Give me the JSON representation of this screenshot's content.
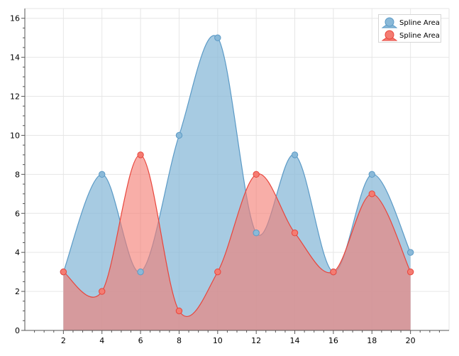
{
  "chart_data": {
    "type": "area",
    "smooth": true,
    "x": [
      2,
      4,
      6,
      8,
      10,
      12,
      14,
      16,
      18,
      20
    ],
    "series": [
      {
        "name": "Spline Area",
        "values": [
          3,
          8,
          3,
          10,
          15,
          5,
          9,
          3,
          8,
          4
        ],
        "color": "#5b9ac6",
        "fill": "#8ab9d8"
      },
      {
        "name": "Spline Area",
        "values": [
          3,
          2,
          9,
          1,
          3,
          8,
          5,
          3,
          7,
          3
        ],
        "color": "#e8453c",
        "fill": "#f47c72"
      }
    ],
    "xlim": [
      0,
      22
    ],
    "ylim": [
      0,
      16.5
    ],
    "xticks": [
      "2",
      "4",
      "6",
      "8",
      "10",
      "12",
      "14",
      "16",
      "18",
      "20"
    ],
    "yticks": [
      "0",
      "2",
      "4",
      "6",
      "8",
      "10",
      "12",
      "14",
      "16"
    ],
    "grid": true,
    "legend_position": "top-right"
  }
}
